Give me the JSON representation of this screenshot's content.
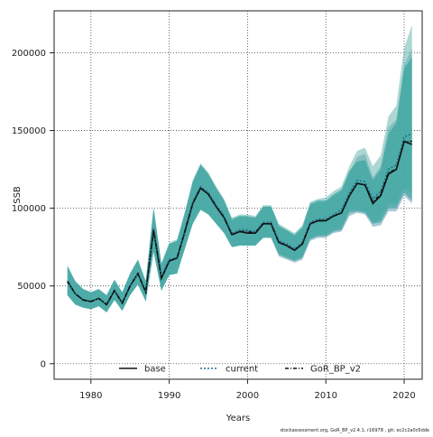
{
  "chart_data": {
    "type": "line",
    "title": "",
    "xlabel": "Years",
    "ylabel": "SSB",
    "xlim": [
      1975.3,
      2022.3
    ],
    "ylim": [
      -10000,
      227000
    ],
    "x_ticks": [
      1980,
      1990,
      2000,
      2010,
      2020
    ],
    "y_ticks": [
      0,
      50000,
      100000,
      150000,
      200000
    ],
    "x_tick_labels": [
      "1980",
      "1990",
      "2000",
      "2010",
      "2020"
    ],
    "y_tick_labels": [
      "0",
      "50000",
      "100000",
      "150000",
      "200000"
    ],
    "grid": true,
    "legend_position": "bottom",
    "footer": "stockassessment.org, GoR_BP_v2.4.1, r16978 , git: ec2c2a0c6dde",
    "colors": {
      "band_base": "#8fb5c7",
      "band_current": "#68b6ae",
      "band_gor": "#1f9d94",
      "line": "#111111",
      "current_line": "#1f6f8b",
      "grid": "#444444"
    },
    "years": [
      1977,
      1978,
      1979,
      1980,
      1981,
      1982,
      1983,
      1984,
      1985,
      1986,
      1987,
      1988,
      1989,
      1990,
      1991,
      1992,
      1993,
      1994,
      1995,
      1996,
      1997,
      1998,
      1999,
      2000,
      2001,
      2002,
      2003,
      2004,
      2005,
      2006,
      2007,
      2008,
      2009,
      2010,
      2011,
      2012,
      2013,
      2014,
      2015,
      2016,
      2017,
      2018,
      2019,
      2020,
      2021
    ],
    "series": [
      {
        "name": "base",
        "line_style": "solid",
        "values": [
          53000,
          45000,
          41000,
          40000,
          42000,
          38000,
          47000,
          39000,
          50000,
          58000,
          46000,
          86000,
          55000,
          66000,
          68000,
          85000,
          103000,
          113000,
          109000,
          101000,
          94000,
          83000,
          85000,
          84000,
          84000,
          90000,
          90000,
          78000,
          76000,
          73000,
          77000,
          90000,
          92000,
          92000,
          95000,
          97000,
          108000,
          116000,
          115000,
          103000,
          108000,
          122000,
          125000,
          143000,
          141000
        ],
        "lower": [
          44000,
          38000,
          36000,
          35000,
          37000,
          33000,
          41000,
          34000,
          44000,
          51000,
          40000,
          72000,
          47000,
          57000,
          58000,
          74000,
          90000,
          99000,
          96000,
          90000,
          84000,
          75000,
          76000,
          76000,
          76000,
          81000,
          81000,
          69000,
          67000,
          65000,
          67000,
          79000,
          81000,
          81000,
          84000,
          85000,
          95000,
          97000,
          96000,
          88000,
          89000,
          98000,
          98000,
          108000,
          103000
        ],
        "upper": [
          63000,
          53000,
          48000,
          46000,
          48000,
          44000,
          54000,
          46000,
          58000,
          67000,
          53000,
          100000,
          64000,
          77000,
          79000,
          97000,
          117000,
          128000,
          122000,
          113000,
          105000,
          92000,
          95000,
          94000,
          94000,
          101000,
          101000,
          88000,
          86000,
          82000,
          87000,
          102000,
          104000,
          104000,
          108000,
          111000,
          123000,
          133000,
          135000,
          120000,
          127000,
          152000,
          157000,
          192000,
          203000
        ]
      },
      {
        "name": "current",
        "line_style": "dotted",
        "values": [
          53000,
          45000,
          41000,
          40000,
          42000,
          38000,
          47000,
          39000,
          50000,
          58000,
          46000,
          87000,
          56000,
          67000,
          68000,
          86000,
          104000,
          114000,
          110000,
          102000,
          95000,
          84000,
          86000,
          86000,
          85000,
          91000,
          91000,
          79000,
          77000,
          74000,
          78000,
          91000,
          93000,
          93000,
          96000,
          99000,
          110000,
          118000,
          117000,
          106000,
          111000,
          125000,
          128000,
          146000,
          148000
        ],
        "lower": [
          44000,
          38000,
          36000,
          35000,
          37000,
          33000,
          41000,
          34000,
          44000,
          51000,
          40000,
          72000,
          47000,
          57000,
          58000,
          74000,
          90000,
          99000,
          96000,
          90000,
          84000,
          75000,
          76000,
          76000,
          76000,
          81000,
          81000,
          71000,
          69000,
          67000,
          69000,
          81000,
          83000,
          83000,
          86000,
          88000,
          99000,
          99000,
          98000,
          91000,
          93000,
          103000,
          103000,
          113000,
          110000
        ],
        "upper": [
          63000,
          53000,
          48000,
          46000,
          48000,
          44000,
          54000,
          46000,
          58000,
          67000,
          53000,
          101000,
          65000,
          78000,
          80000,
          98000,
          118000,
          129000,
          123000,
          114000,
          106000,
          94000,
          96000,
          96000,
          95000,
          102000,
          102000,
          90000,
          87000,
          84000,
          89000,
          104000,
          106000,
          107000,
          111000,
          114000,
          127000,
          137000,
          139000,
          127000,
          134000,
          159000,
          166000,
          203000,
          218000
        ]
      },
      {
        "name": "GoR_BP_v2",
        "line_style": "dashdot",
        "values": [
          53000,
          45000,
          41000,
          40000,
          42000,
          38000,
          47000,
          39000,
          50000,
          58000,
          46000,
          86000,
          55000,
          66000,
          68000,
          85000,
          103000,
          113000,
          109000,
          101000,
          94000,
          83000,
          85000,
          85000,
          84000,
          90000,
          90000,
          78000,
          76000,
          73000,
          77000,
          90000,
          92000,
          92000,
          95000,
          97000,
          108000,
          116000,
          115000,
          104000,
          109000,
          123000,
          125000,
          143000,
          143000
        ],
        "lower": [
          44000,
          38000,
          36000,
          35000,
          37000,
          33000,
          41000,
          34000,
          44000,
          51000,
          40000,
          72000,
          47000,
          57000,
          58000,
          74000,
          90000,
          99000,
          96000,
          90000,
          84000,
          75000,
          76000,
          76000,
          76000,
          81000,
          81000,
          70000,
          68000,
          66000,
          68000,
          80000,
          82000,
          82000,
          85000,
          86000,
          97000,
          98000,
          97000,
          90000,
          91000,
          100000,
          100000,
          110000,
          105000
        ],
        "upper": [
          63000,
          53000,
          48000,
          46000,
          48000,
          44000,
          54000,
          46000,
          58000,
          67000,
          53000,
          100000,
          64000,
          77000,
          79000,
          97000,
          117000,
          128000,
          122000,
          113000,
          105000,
          93000,
          95000,
          95000,
          94000,
          101000,
          101000,
          89000,
          86000,
          83000,
          88000,
          103000,
          105000,
          105000,
          109000,
          112000,
          124000,
          130000,
          131000,
          118000,
          125000,
          148000,
          155000,
          190000,
          197000
        ]
      }
    ]
  }
}
